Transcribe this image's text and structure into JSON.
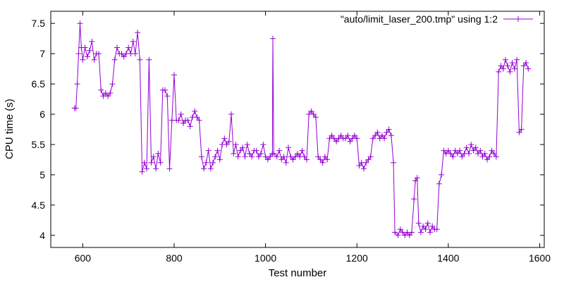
{
  "chart_data": {
    "type": "line",
    "title": "",
    "xlabel": "Test number",
    "ylabel": "CPU time (s)",
    "xlim": [
      530,
      1610
    ],
    "ylim": [
      3.8,
      7.7
    ],
    "xticks": [
      600,
      800,
      1000,
      1200,
      1400,
      1600
    ],
    "yticks": [
      4,
      4.5,
      5,
      5.5,
      6,
      6.5,
      7,
      7.5
    ],
    "grid": false,
    "legend_position": "top-right",
    "marker": "plus",
    "colors": {
      "series": "#9400d3",
      "axis": "#000000"
    },
    "series": [
      {
        "name": "\"auto/limit_laser_200.tmp\" using 1:2",
        "points": [
          [
            582,
            6.1
          ],
          [
            585,
            6.1
          ],
          [
            588,
            6.5
          ],
          [
            591,
            7.0
          ],
          [
            594,
            7.5
          ],
          [
            597,
            7.1
          ],
          [
            600,
            6.9
          ],
          [
            605,
            7.1
          ],
          [
            610,
            6.95
          ],
          [
            615,
            7.05
          ],
          [
            620,
            7.2
          ],
          [
            625,
            6.9
          ],
          [
            630,
            7.0
          ],
          [
            635,
            7.0
          ],
          [
            640,
            6.4
          ],
          [
            645,
            6.3
          ],
          [
            650,
            6.35
          ],
          [
            655,
            6.3
          ],
          [
            660,
            6.35
          ],
          [
            665,
            6.5
          ],
          [
            670,
            6.9
          ],
          [
            675,
            7.1
          ],
          [
            680,
            7.0
          ],
          [
            685,
            7.0
          ],
          [
            690,
            6.95
          ],
          [
            695,
            7.0
          ],
          [
            700,
            7.1
          ],
          [
            705,
            7.0
          ],
          [
            710,
            7.2
          ],
          [
            715,
            7.0
          ],
          [
            720,
            7.35
          ],
          [
            725,
            6.9
          ],
          [
            730,
            5.05
          ],
          [
            735,
            5.2
          ],
          [
            740,
            5.1
          ],
          [
            745,
            6.9
          ],
          [
            750,
            5.2
          ],
          [
            755,
            5.3
          ],
          [
            760,
            5.1
          ],
          [
            765,
            5.35
          ],
          [
            770,
            5.2
          ],
          [
            775,
            6.4
          ],
          [
            780,
            6.4
          ],
          [
            785,
            6.3
          ],
          [
            790,
            5.1
          ],
          [
            795,
            5.9
          ],
          [
            800,
            6.65
          ],
          [
            805,
            5.9
          ],
          [
            810,
            5.9
          ],
          [
            815,
            6.0
          ],
          [
            820,
            5.85
          ],
          [
            825,
            5.9
          ],
          [
            830,
            5.9
          ],
          [
            835,
            5.8
          ],
          [
            840,
            5.95
          ],
          [
            845,
            6.05
          ],
          [
            850,
            5.95
          ],
          [
            855,
            5.9
          ],
          [
            860,
            5.3
          ],
          [
            865,
            5.1
          ],
          [
            870,
            5.2
          ],
          [
            875,
            5.4
          ],
          [
            880,
            5.1
          ],
          [
            885,
            5.2
          ],
          [
            890,
            5.3
          ],
          [
            895,
            5.4
          ],
          [
            900,
            5.25
          ],
          [
            905,
            5.5
          ],
          [
            910,
            5.6
          ],
          [
            915,
            5.5
          ],
          [
            920,
            5.55
          ],
          [
            925,
            6.0
          ],
          [
            930,
            5.35
          ],
          [
            935,
            5.5
          ],
          [
            940,
            5.3
          ],
          [
            945,
            5.4
          ],
          [
            950,
            5.45
          ],
          [
            955,
            5.3
          ],
          [
            960,
            5.5
          ],
          [
            965,
            5.35
          ],
          [
            970,
            5.3
          ],
          [
            975,
            5.4
          ],
          [
            980,
            5.4
          ],
          [
            985,
            5.3
          ],
          [
            990,
            5.35
          ],
          [
            995,
            5.5
          ],
          [
            1000,
            5.3
          ],
          [
            1005,
            5.25
          ],
          [
            1010,
            5.3
          ],
          [
            1015,
            5.35
          ],
          [
            1016,
            7.25
          ],
          [
            1018,
            5.35
          ],
          [
            1025,
            5.3
          ],
          [
            1030,
            5.4
          ],
          [
            1035,
            5.25
          ],
          [
            1040,
            5.3
          ],
          [
            1045,
            5.2
          ],
          [
            1050,
            5.45
          ],
          [
            1055,
            5.3
          ],
          [
            1060,
            5.25
          ],
          [
            1065,
            5.3
          ],
          [
            1070,
            5.35
          ],
          [
            1075,
            5.3
          ],
          [
            1080,
            5.4
          ],
          [
            1085,
            5.3
          ],
          [
            1090,
            5.25
          ],
          [
            1095,
            6.0
          ],
          [
            1100,
            6.05
          ],
          [
            1105,
            6.0
          ],
          [
            1110,
            5.95
          ],
          [
            1115,
            5.3
          ],
          [
            1120,
            5.25
          ],
          [
            1125,
            5.2
          ],
          [
            1130,
            5.3
          ],
          [
            1135,
            5.25
          ],
          [
            1140,
            5.6
          ],
          [
            1145,
            5.65
          ],
          [
            1150,
            5.6
          ],
          [
            1155,
            5.55
          ],
          [
            1160,
            5.6
          ],
          [
            1165,
            5.65
          ],
          [
            1170,
            5.6
          ],
          [
            1175,
            5.6
          ],
          [
            1180,
            5.65
          ],
          [
            1185,
            5.55
          ],
          [
            1190,
            5.6
          ],
          [
            1195,
            5.65
          ],
          [
            1200,
            5.6
          ],
          [
            1205,
            5.15
          ],
          [
            1210,
            5.2
          ],
          [
            1215,
            5.1
          ],
          [
            1220,
            5.2
          ],
          [
            1225,
            5.25
          ],
          [
            1230,
            5.3
          ],
          [
            1235,
            5.6
          ],
          [
            1240,
            5.65
          ],
          [
            1245,
            5.7
          ],
          [
            1250,
            5.6
          ],
          [
            1255,
            5.65
          ],
          [
            1260,
            5.6
          ],
          [
            1265,
            5.7
          ],
          [
            1270,
            5.75
          ],
          [
            1275,
            5.65
          ],
          [
            1280,
            5.2
          ],
          [
            1283,
            4.05
          ],
          [
            1290,
            4.0
          ],
          [
            1295,
            4.1
          ],
          [
            1300,
            4.05
          ],
          [
            1305,
            4.0
          ],
          [
            1310,
            4.05
          ],
          [
            1315,
            4.0
          ],
          [
            1320,
            4.05
          ],
          [
            1325,
            4.6
          ],
          [
            1328,
            4.9
          ],
          [
            1332,
            4.95
          ],
          [
            1335,
            4.2
          ],
          [
            1340,
            4.05
          ],
          [
            1345,
            4.15
          ],
          [
            1350,
            4.1
          ],
          [
            1355,
            4.2
          ],
          [
            1360,
            4.05
          ],
          [
            1365,
            4.15
          ],
          [
            1370,
            4.1
          ],
          [
            1375,
            4.1
          ],
          [
            1380,
            4.85
          ],
          [
            1385,
            5.0
          ],
          [
            1390,
            5.4
          ],
          [
            1395,
            5.35
          ],
          [
            1400,
            5.4
          ],
          [
            1405,
            5.35
          ],
          [
            1410,
            5.3
          ],
          [
            1415,
            5.4
          ],
          [
            1420,
            5.35
          ],
          [
            1425,
            5.4
          ],
          [
            1430,
            5.3
          ],
          [
            1435,
            5.35
          ],
          [
            1440,
            5.45
          ],
          [
            1445,
            5.35
          ],
          [
            1450,
            5.5
          ],
          [
            1455,
            5.4
          ],
          [
            1460,
            5.45
          ],
          [
            1465,
            5.35
          ],
          [
            1470,
            5.4
          ],
          [
            1475,
            5.3
          ],
          [
            1480,
            5.35
          ],
          [
            1485,
            5.25
          ],
          [
            1490,
            5.3
          ],
          [
            1495,
            5.4
          ],
          [
            1500,
            5.35
          ],
          [
            1505,
            5.3
          ],
          [
            1510,
            6.7
          ],
          [
            1515,
            6.8
          ],
          [
            1520,
            6.75
          ],
          [
            1525,
            6.9
          ],
          [
            1530,
            6.8
          ],
          [
            1535,
            6.7
          ],
          [
            1540,
            6.85
          ],
          [
            1545,
            6.75
          ],
          [
            1550,
            6.9
          ],
          [
            1555,
            5.7
          ],
          [
            1560,
            5.75
          ],
          [
            1565,
            6.8
          ],
          [
            1570,
            6.85
          ],
          [
            1575,
            6.75
          ]
        ]
      }
    ]
  }
}
